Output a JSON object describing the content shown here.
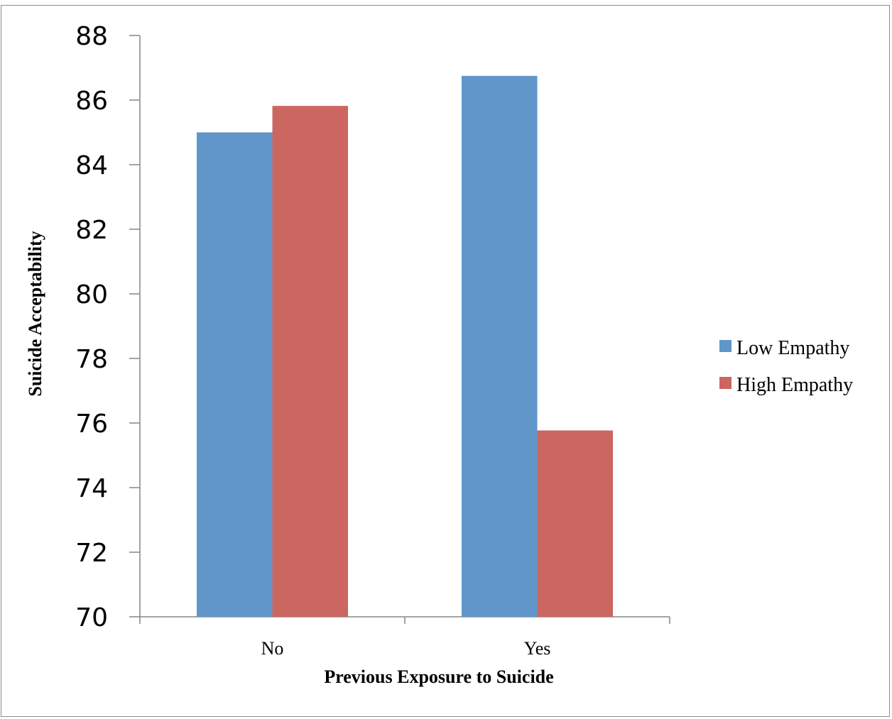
{
  "chart_data": {
    "type": "bar",
    "title": "",
    "xlabel": "Previous Exposure to Suicide",
    "ylabel": "Suicide Acceptability",
    "categories": [
      "No",
      "Yes"
    ],
    "ylim": [
      70,
      88
    ],
    "yticks": [
      "70",
      "72",
      "74",
      "76",
      "78",
      "80",
      "82",
      "84",
      "86",
      "88"
    ],
    "series": [
      {
        "name": "Low Empathy",
        "color": "#6096c9",
        "values": [
          85.0,
          86.75
        ]
      },
      {
        "name": "High Empathy",
        "color": "#cc6660",
        "values": [
          85.82,
          75.77
        ]
      }
    ],
    "legend_position": "right",
    "grid": false
  }
}
